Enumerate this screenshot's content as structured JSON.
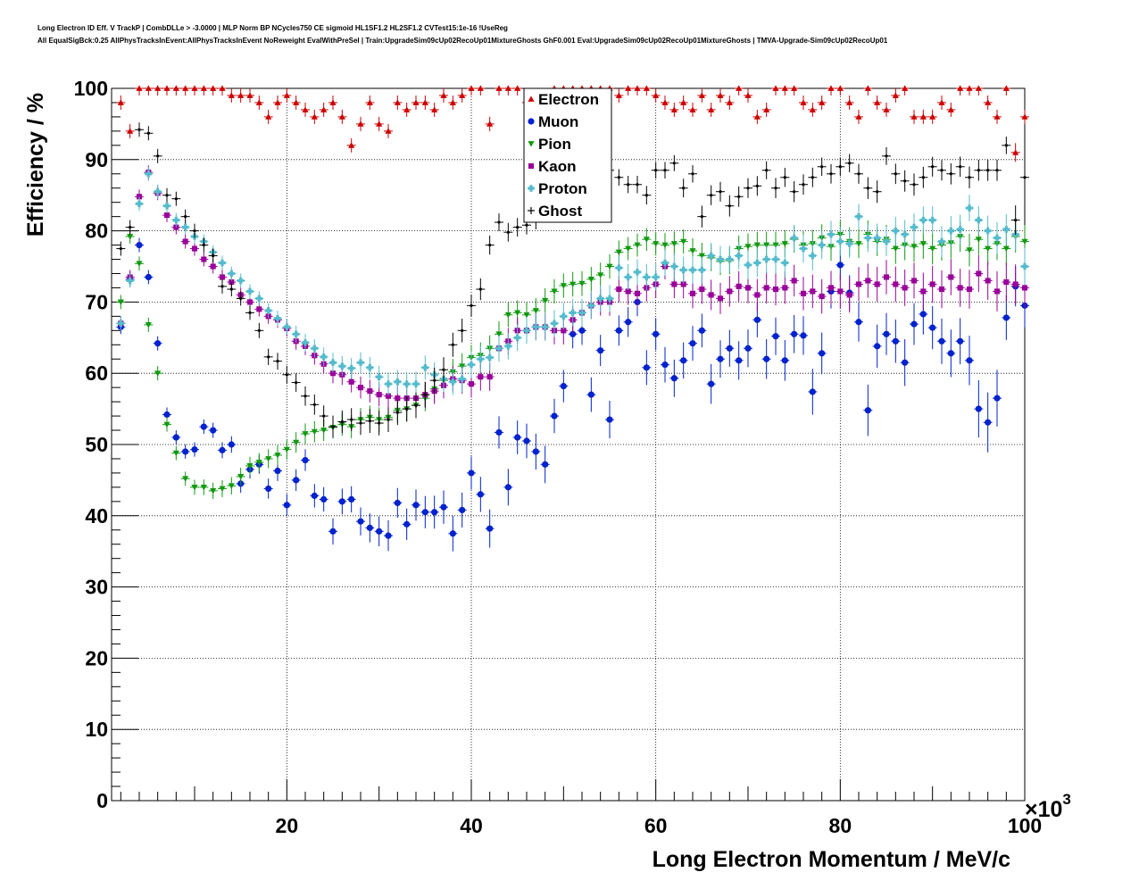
{
  "header": {
    "line1": "Long Electron ID Eff. V TrackP | CombDLLe > -3.0000 | MLP Norm BP NCycles750 CE sigmoid HL1SF1.2 HL2SF1.2 CVTest15:1e-16 !UseReg",
    "line2": "All EqualSigBck:0.25 AllPhysTracksInEvent:AllPhysTracksInEvent NoReweight EvalWithPreSel | Train:UpgradeSim09cUp02RecoUp01MixtureGhosts GhF0.001 Eval:UpgradeSim09cUp02RecoUp01MixtureGhosts | TMVA-Upgrade-Sim09cUp02RecoUp01"
  },
  "chart_data": {
    "type": "scatter",
    "xlabel": "Long Electron Momentum / MeV/c",
    "ylabel": "Efficiency / %",
    "x_multiplier": "×10",
    "x_multiplier_exp": "3",
    "xlim": [
      1000,
      100000
    ],
    "ylim": [
      0,
      100
    ],
    "x_ticks": [
      20,
      40,
      60,
      80,
      100
    ],
    "y_ticks": [
      0,
      10,
      20,
      30,
      40,
      50,
      60,
      70,
      80,
      90,
      100
    ],
    "grid": true,
    "legend_position": "top-center",
    "x": [
      2,
      3,
      4,
      5,
      6,
      7,
      8,
      9,
      10,
      11,
      12,
      13,
      14,
      15,
      16,
      17,
      18,
      19,
      20,
      21,
      22,
      23,
      24,
      25,
      26,
      27,
      28,
      29,
      30,
      31,
      32,
      33,
      34,
      35,
      36,
      37,
      38,
      39,
      40,
      41,
      42,
      43,
      44,
      45,
      46,
      47,
      48,
      49,
      50,
      51,
      52,
      53,
      54,
      55,
      56,
      57,
      58,
      59,
      60,
      61,
      62,
      63,
      64,
      65,
      66,
      67,
      68,
      69,
      70,
      71,
      72,
      73,
      74,
      75,
      76,
      77,
      78,
      79,
      80,
      81,
      82,
      83,
      84,
      85,
      86,
      87,
      88,
      89,
      90,
      91,
      92,
      93,
      94,
      95,
      96,
      97,
      98,
      99,
      100
    ],
    "series": [
      {
        "name": "Electron",
        "marker": "triangle-up",
        "color": "#cc0000",
        "values": [
          98,
          94,
          100,
          100,
          100,
          100,
          100,
          100,
          100,
          100,
          100,
          100,
          99,
          99,
          99,
          98,
          96,
          98,
          99,
          98,
          97,
          96,
          97,
          98,
          96,
          92,
          95,
          98,
          95,
          94,
          98,
          97,
          98,
          98,
          97,
          99,
          98,
          99,
          100,
          100,
          95,
          100,
          100,
          100,
          98,
          98,
          99,
          100,
          100,
          100,
          100,
          100,
          100,
          100,
          99,
          100,
          100,
          100,
          99,
          98,
          97,
          98,
          97,
          99,
          97,
          99,
          98,
          100,
          99,
          96,
          97,
          100,
          100,
          100,
          98,
          97,
          98,
          100,
          100,
          98,
          96,
          100,
          98,
          97,
          99,
          100,
          96,
          96,
          96,
          98,
          97,
          100,
          100,
          100,
          98,
          96,
          100,
          91,
          96
        ]
      },
      {
        "name": "Muon",
        "marker": "circle",
        "color": "#0022cc",
        "values": [
          66.5,
          73.2,
          78,
          73.5,
          64.2,
          54.2,
          51,
          49,
          49.3,
          52.5,
          52,
          49.2,
          50,
          44.5,
          46.5,
          47.2,
          43.8,
          46.3,
          41.5,
          45,
          47.8,
          42.8,
          42.3,
          37.8,
          42,
          42.3,
          39.2,
          38.3,
          37.8,
          37.2,
          41.8,
          38.8,
          41.5,
          40.5,
          40.5,
          41.2,
          37.5,
          40.8,
          46,
          43,
          38.2,
          51.7,
          44,
          51,
          50.5,
          49,
          47.2,
          54,
          58.2,
          65.5,
          66,
          57,
          63.2,
          53.5,
          66,
          67.2,
          70,
          60.8,
          65.5,
          61.2,
          59.3,
          61.8,
          64.2,
          66,
          58.5,
          62,
          63.5,
          61.8,
          63.5,
          67.5,
          62,
          65.2,
          61.8,
          65.5,
          65.3,
          57.4,
          62.8,
          71.5,
          75.2,
          71.3,
          67.2,
          54.8,
          63.8,
          65.5,
          64.5,
          61.5,
          66.9,
          68.3,
          66.4,
          64.5,
          62.8,
          64.5,
          61.8,
          55,
          53.1,
          56.5,
          67.8,
          72.2,
          69.5
        ]
      },
      {
        "name": "Pion",
        "marker": "triangle-down",
        "color": "#119911",
        "values": [
          70,
          79.2,
          75.4,
          66.8,
          60,
          52.8,
          48.8,
          45.2,
          44,
          44,
          43.5,
          43.8,
          44.2,
          45.5,
          47,
          47.5,
          48,
          48.5,
          49.3,
          50.3,
          51.5,
          51.8,
          52,
          52.4,
          52.8,
          52.5,
          53.5,
          53.8,
          53.5,
          53.8,
          54.8,
          55,
          55.5,
          56.5,
          57.8,
          59,
          60.2,
          61,
          62.2,
          62.5,
          63.5,
          65.5,
          68.2,
          68.5,
          68.2,
          68.8,
          70.2,
          71.5,
          72.3,
          72.5,
          72.6,
          73.2,
          73.8,
          75,
          77,
          77.5,
          78,
          78.8,
          78.2,
          78,
          78.2,
          78.5,
          77.2,
          76.5,
          76.2,
          75.7,
          75.8,
          77.5,
          77.8,
          78,
          78,
          78,
          78.2,
          78.8,
          78,
          78.2,
          79,
          77.8,
          79.5,
          78.5,
          78.2,
          79.5,
          78.5,
          78.8,
          77.5,
          78,
          77.8,
          78.2,
          77.5,
          78,
          78.3,
          79.2,
          77.3,
          78.8,
          77.5,
          78.2,
          77.5,
          79.2,
          78.5
        ]
      },
      {
        "name": "Kaon",
        "marker": "square",
        "color": "#990099",
        "values": [
          67,
          73.5,
          84.8,
          88.2,
          85.3,
          82.2,
          80.5,
          78.5,
          77.5,
          76,
          75,
          73.5,
          72.8,
          71,
          70,
          69,
          68,
          67.5,
          66.3,
          64.5,
          63.8,
          62.5,
          61.3,
          60,
          59.8,
          58.8,
          58,
          57.5,
          57,
          56.8,
          56.5,
          56.5,
          56.5,
          57,
          57.5,
          58.3,
          59.2,
          59,
          58.5,
          59.5,
          59.5,
          63.5,
          64.5,
          66,
          66,
          66.5,
          66.5,
          66,
          66,
          67.5,
          68.5,
          69.5,
          70,
          70,
          71.8,
          71.5,
          71.2,
          72,
          72.5,
          75,
          72.5,
          72.5,
          71.2,
          71.8,
          71,
          70.5,
          71.5,
          72.2,
          72,
          71,
          72,
          71.8,
          72,
          73,
          71.2,
          71.5,
          70.8,
          72,
          71.5,
          71,
          72.5,
          73,
          72.5,
          73.5,
          72.5,
          72,
          73,
          71.5,
          72.5,
          71.8,
          73.5,
          72,
          71.8,
          74,
          73,
          71.5,
          72.8,
          72.5,
          72
        ]
      },
      {
        "name": "Proton",
        "marker": "cross",
        "color": "#55bbcc",
        "values": [
          67,
          73,
          83.8,
          88,
          85.5,
          83.5,
          81.5,
          80.5,
          79.2,
          78.5,
          77,
          75.5,
          74,
          73,
          71.5,
          70.5,
          68.8,
          67.7,
          66.5,
          65.5,
          64.3,
          63.5,
          62.3,
          61.5,
          61,
          60.7,
          61.5,
          60.8,
          59.5,
          58.5,
          58.8,
          58.5,
          58.5,
          60.8,
          59.8,
          59.2,
          58.8,
          59.2,
          61.2,
          62,
          62.2,
          63.5,
          63.8,
          65,
          66,
          66.5,
          66.5,
          67,
          68,
          68.5,
          68.5,
          69.5,
          70.5,
          70.5,
          74.8,
          73.5,
          74.2,
          73.5,
          73.5,
          75.5,
          75,
          74.5,
          74.5,
          74.5,
          76.5,
          76,
          76,
          76.5,
          75.2,
          75.5,
          76,
          76,
          75.5,
          79,
          77.5,
          76.5,
          78,
          79.5,
          78.5,
          78.2,
          82,
          79,
          79,
          78.5,
          80,
          79.5,
          80.5,
          81.5,
          81.5,
          78.5,
          80,
          80.2,
          83.2,
          81.5,
          80,
          79,
          80.2,
          79.5,
          75
        ]
      },
      {
        "name": "Ghost",
        "marker": "plus",
        "color": "#000000",
        "values": [
          77.5,
          80.5,
          94.2,
          93.7,
          90.5,
          85,
          84.5,
          82,
          80,
          78,
          76.5,
          72.2,
          71.8,
          70.5,
          68.5,
          66,
          62.3,
          61.7,
          59.8,
          58.7,
          56.8,
          55.6,
          54,
          52.5,
          53.2,
          53.5,
          53,
          53.3,
          53,
          53.5,
          54.5,
          55,
          55.5,
          57,
          59,
          60.5,
          64,
          66,
          69.5,
          71.8,
          78,
          81.2,
          79.8,
          80.5,
          80.8,
          81.5,
          82.5,
          83.5,
          84.5,
          83.5,
          83.8,
          85.2,
          85.5,
          88.5,
          87.5,
          86.5,
          86.5,
          85,
          88.5,
          88.5,
          89.5,
          86,
          88,
          82,
          85,
          85.5,
          83.5,
          84.8,
          86,
          86.3,
          88.5,
          86,
          87.5,
          85.5,
          86.5,
          87.5,
          89,
          88,
          89,
          89.5,
          88,
          86,
          85.5,
          90.5,
          88,
          87,
          86.5,
          87.5,
          89,
          88.5,
          88,
          89,
          87.5,
          88.5,
          88.5,
          88.5,
          92,
          81.5,
          87.5
        ]
      }
    ]
  }
}
